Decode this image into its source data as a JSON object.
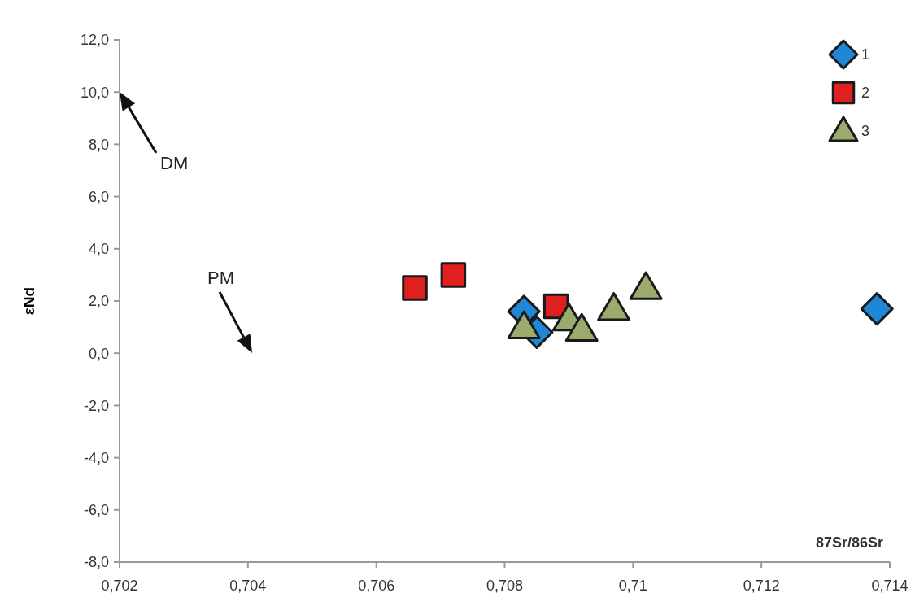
{
  "chart_data": {
    "type": "scatter",
    "xlabel": "87Sr/86Sr",
    "ylabel": "εNd",
    "xlim": [
      0.702,
      0.714
    ],
    "ylim": [
      -8,
      12
    ],
    "xticks": [
      {
        "value": 0.702,
        "label": "0,702"
      },
      {
        "value": 0.704,
        "label": "0,704"
      },
      {
        "value": 0.706,
        "label": "0,706"
      },
      {
        "value": 0.708,
        "label": "0,708"
      },
      {
        "value": 0.71,
        "label": "0,71"
      },
      {
        "value": 0.712,
        "label": "0,712"
      },
      {
        "value": 0.714,
        "label": "0,714"
      }
    ],
    "yticks": [
      {
        "value": -8,
        "label": "-8,0"
      },
      {
        "value": -6,
        "label": "-6,0"
      },
      {
        "value": -4,
        "label": "-4,0"
      },
      {
        "value": -2,
        "label": "-2,0"
      },
      {
        "value": 0,
        "label": "0,0"
      },
      {
        "value": 2,
        "label": "2,0"
      },
      {
        "value": 4,
        "label": "4,0"
      },
      {
        "value": 6,
        "label": "6,0"
      },
      {
        "value": 8,
        "label": "8,0"
      },
      {
        "value": 10,
        "label": "10,0"
      },
      {
        "value": 12,
        "label": "12,0"
      }
    ],
    "grid": false,
    "legend": "top right",
    "series": [
      {
        "name": "1",
        "color": "#1e88d6",
        "marker": "diamond",
        "x": [
          0.7083,
          0.7085,
          0.7138
        ],
        "values": [
          1.6,
          0.8,
          1.7
        ]
      },
      {
        "name": "2",
        "color": "#e02020",
        "marker": "square",
        "x": [
          0.7066,
          0.7072,
          0.7088
        ],
        "values": [
          2.5,
          3.0,
          1.8
        ]
      },
      {
        "name": "3",
        "color": "#9bab6c",
        "marker": "triangle",
        "x": [
          0.7083,
          0.709,
          0.7092,
          0.7097,
          0.7102
        ],
        "values": [
          1.0,
          1.3,
          0.9,
          1.7,
          2.5
        ]
      }
    ],
    "annotations": [
      "DM",
      "PM"
    ]
  }
}
